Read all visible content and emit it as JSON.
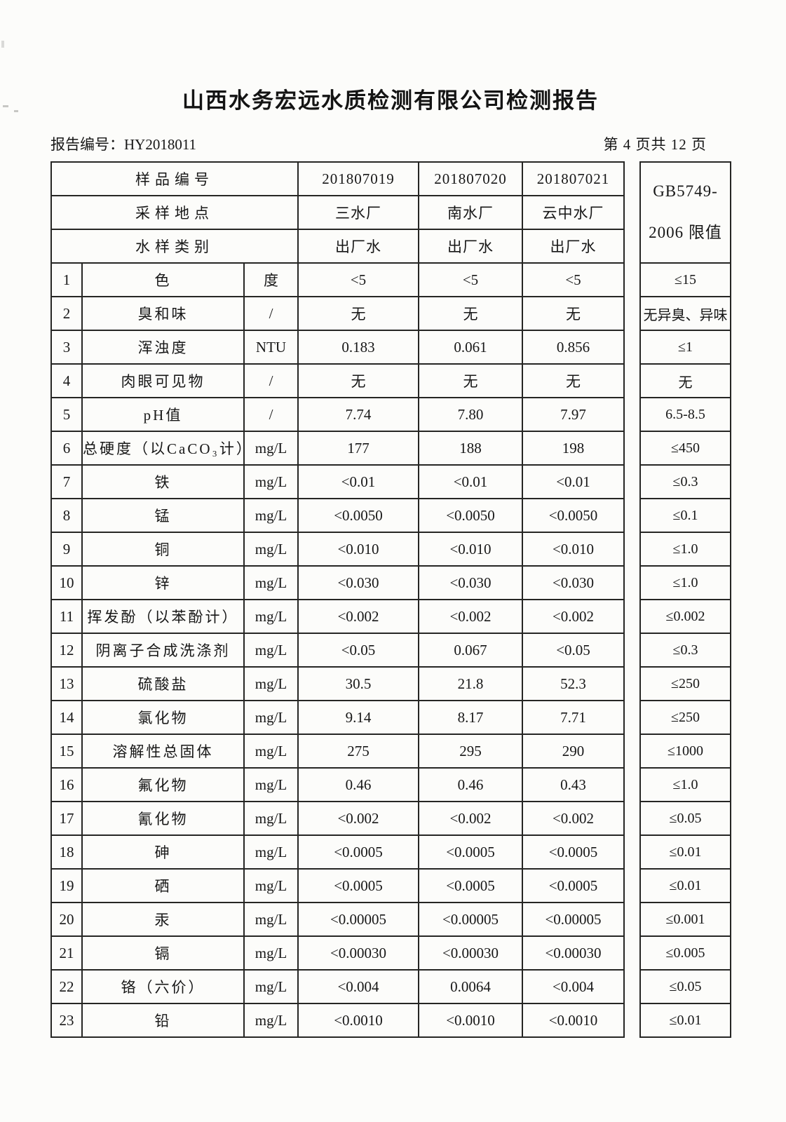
{
  "page": {
    "title": "山西水务宏远水质检测有限公司检测报告",
    "report_no_label": "报告编号：",
    "report_no": "HY2018011",
    "page_indicator": "第 4 页共 12 页"
  },
  "table": {
    "header": {
      "rows": [
        {
          "label": "样品编号",
          "values": [
            "201807019",
            "201807020",
            "201807021"
          ]
        },
        {
          "label": "采样地点",
          "values": [
            "三水厂",
            "南水厂",
            "云中水厂"
          ]
        },
        {
          "label": "水样类别",
          "values": [
            "出厂水",
            "出厂水",
            "出厂水"
          ]
        }
      ],
      "limit_line1": "GB5749-",
      "limit_line2": "2006 限值"
    },
    "rows": [
      {
        "no": "1",
        "name": "色",
        "unit": "度",
        "v1": "<5",
        "v2": "<5",
        "v3": "<5",
        "limit": "≤15"
      },
      {
        "no": "2",
        "name": "臭和味",
        "unit": "/",
        "v1": "无",
        "v2": "无",
        "v3": "无",
        "limit": "无异臭、异味"
      },
      {
        "no": "3",
        "name": "浑浊度",
        "unit": "NTU",
        "v1": "0.183",
        "v2": "0.061",
        "v3": "0.856",
        "limit": "≤1"
      },
      {
        "no": "4",
        "name": "肉眼可见物",
        "unit": "/",
        "v1": "无",
        "v2": "无",
        "v3": "无",
        "limit": "无"
      },
      {
        "no": "5",
        "name": "pH值",
        "unit": "/",
        "v1": "7.74",
        "v2": "7.80",
        "v3": "7.97",
        "limit": "6.5-8.5"
      },
      {
        "no": "6",
        "name": "总硬度（以CaCO₃计）",
        "unit": "mg/L",
        "v1": "177",
        "v2": "188",
        "v3": "198",
        "limit": "≤450"
      },
      {
        "no": "7",
        "name": "铁",
        "unit": "mg/L",
        "v1": "<0.01",
        "v2": "<0.01",
        "v3": "<0.01",
        "limit": "≤0.3"
      },
      {
        "no": "8",
        "name": "锰",
        "unit": "mg/L",
        "v1": "<0.0050",
        "v2": "<0.0050",
        "v3": "<0.0050",
        "limit": "≤0.1"
      },
      {
        "no": "9",
        "name": "铜",
        "unit": "mg/L",
        "v1": "<0.010",
        "v2": "<0.010",
        "v3": "<0.010",
        "limit": "≤1.0"
      },
      {
        "no": "10",
        "name": "锌",
        "unit": "mg/L",
        "v1": "<0.030",
        "v2": "<0.030",
        "v3": "<0.030",
        "limit": "≤1.0"
      },
      {
        "no": "11",
        "name": "挥发酚（以苯酚计）",
        "unit": "mg/L",
        "v1": "<0.002",
        "v2": "<0.002",
        "v3": "<0.002",
        "limit": "≤0.002"
      },
      {
        "no": "12",
        "name": "阴离子合成洗涤剂",
        "unit": "mg/L",
        "v1": "<0.05",
        "v2": "0.067",
        "v3": "<0.05",
        "limit": "≤0.3"
      },
      {
        "no": "13",
        "name": "硫酸盐",
        "unit": "mg/L",
        "v1": "30.5",
        "v2": "21.8",
        "v3": "52.3",
        "limit": "≤250"
      },
      {
        "no": "14",
        "name": "氯化物",
        "unit": "mg/L",
        "v1": "9.14",
        "v2": "8.17",
        "v3": "7.71",
        "limit": "≤250"
      },
      {
        "no": "15",
        "name": "溶解性总固体",
        "unit": "mg/L",
        "v1": "275",
        "v2": "295",
        "v3": "290",
        "limit": "≤1000"
      },
      {
        "no": "16",
        "name": "氟化物",
        "unit": "mg/L",
        "v1": "0.46",
        "v2": "0.46",
        "v3": "0.43",
        "limit": "≤1.0"
      },
      {
        "no": "17",
        "name": "氰化物",
        "unit": "mg/L",
        "v1": "<0.002",
        "v2": "<0.002",
        "v3": "<0.002",
        "limit": "≤0.05"
      },
      {
        "no": "18",
        "name": "砷",
        "unit": "mg/L",
        "v1": "<0.0005",
        "v2": "<0.0005",
        "v3": "<0.0005",
        "limit": "≤0.01"
      },
      {
        "no": "19",
        "name": "硒",
        "unit": "mg/L",
        "v1": "<0.0005",
        "v2": "<0.0005",
        "v3": "<0.0005",
        "limit": "≤0.01"
      },
      {
        "no": "20",
        "name": "汞",
        "unit": "mg/L",
        "v1": "<0.00005",
        "v2": "<0.00005",
        "v3": "<0.00005",
        "limit": "≤0.001"
      },
      {
        "no": "21",
        "name": "镉",
        "unit": "mg/L",
        "v1": "<0.00030",
        "v2": "<0.00030",
        "v3": "<0.00030",
        "limit": "≤0.005"
      },
      {
        "no": "22",
        "name": "铬（六价）",
        "unit": "mg/L",
        "v1": "<0.004",
        "v2": "0.0064",
        "v3": "<0.004",
        "limit": "≤0.05"
      },
      {
        "no": "23",
        "name": "铅",
        "unit": "mg/L",
        "v1": "<0.0010",
        "v2": "<0.0010",
        "v3": "<0.0010",
        "limit": "≤0.01"
      }
    ]
  }
}
